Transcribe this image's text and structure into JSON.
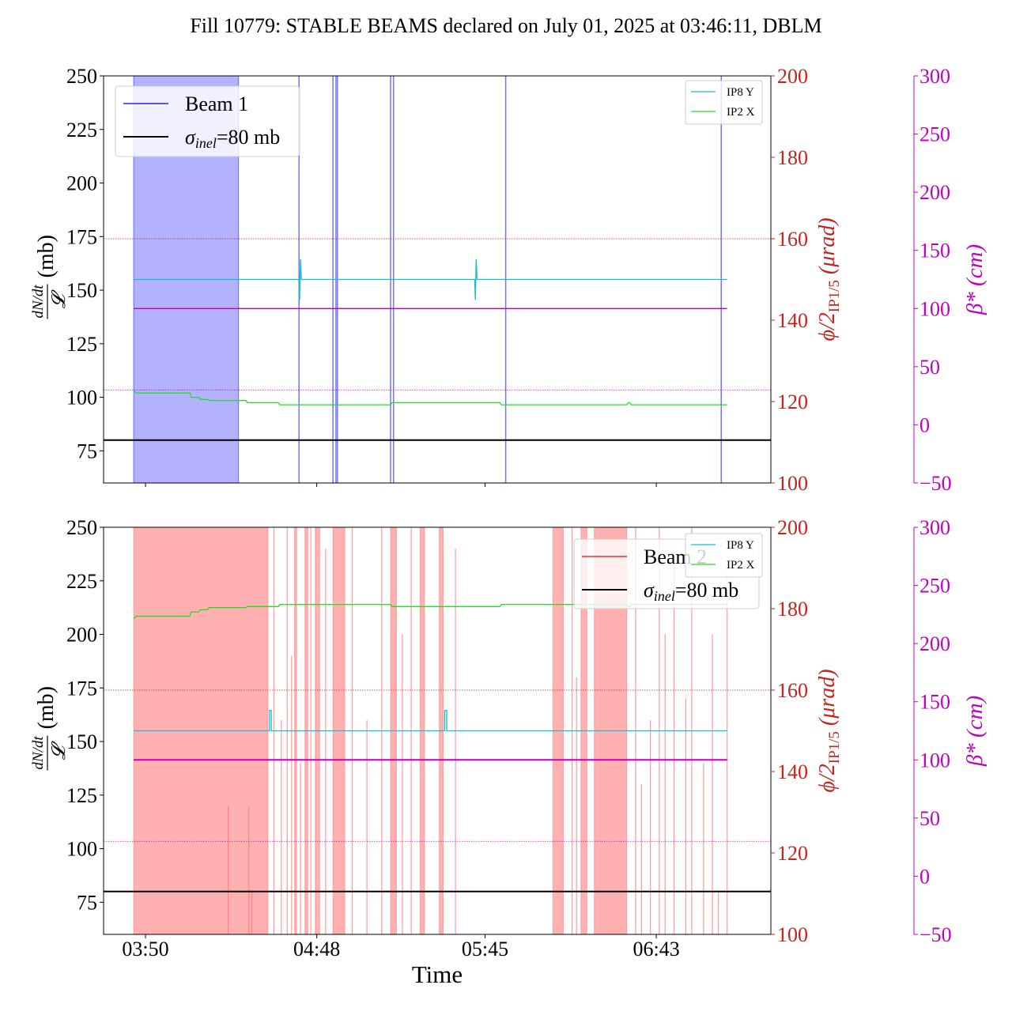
{
  "title": "Fill 10779: STABLE BEAMS declared on July 01, 2025 at 03:46:11, DBLM",
  "xlabel": "Time",
  "x_ticks": [
    {
      "t": 230,
      "label": "03:50"
    },
    {
      "t": 288,
      "label": "04:48"
    },
    {
      "t": 345,
      "label": "05:45"
    },
    {
      "t": 403,
      "label": "06:43"
    }
  ],
  "axis_labels": {
    "left_num": "dN/dt",
    "left_den": "𝓛",
    "left_unit": "(mb)",
    "right1": "ϕ/2",
    "right1_sub": "IP1/5",
    "right1_unit": "(μrad)",
    "right2": "β* (cm)"
  },
  "chart_data": [
    {
      "type": "line",
      "panel": "top",
      "xlim": [
        215.8,
        441.8
      ],
      "ylim": [
        60,
        250
      ],
      "ylim_right1": [
        100,
        200
      ],
      "ylim_right2": [
        -50,
        300
      ],
      "yticks": [
        75,
        100,
        125,
        150,
        175,
        200,
        225,
        250
      ],
      "yticks_right1": [
        100,
        120,
        140,
        160,
        180,
        200
      ],
      "yticks_right2": [
        -50,
        0,
        50,
        100,
        150,
        200,
        250,
        300
      ],
      "legend_main": [
        {
          "label": "Beam 1",
          "color": "#0000cc"
        },
        {
          "label": "σinel=80 mb",
          "math": true,
          "color": "#000000"
        }
      ],
      "legend_small": [
        {
          "label": "IP8 Y",
          "color": "#17becf"
        },
        {
          "label": "IP2 X",
          "color": "#22dd22"
        }
      ],
      "loss_color": "#0000ff",
      "loss_bands": [
        [
          226,
          261.5
        ]
      ],
      "loss_lines": [
        282,
        293.5,
        294.5,
        295,
        313,
        314,
        352,
        425
      ],
      "sigma_inel": 80,
      "crossing_angle_ref": 160,
      "beta_star_ref": 30,
      "series": [
        {
          "name": "IP8 Y",
          "axis": "right1",
          "color": "#17becf",
          "x": [
            226,
            282,
            282.2,
            282.5,
            282.8,
            341.5,
            341.7,
            342,
            342.3,
            427
          ],
          "y": [
            150,
            150,
            145,
            155,
            150,
            150,
            145,
            155,
            150,
            150
          ]
        },
        {
          "name": "beta*",
          "axis": "right2",
          "color": "#c000c0",
          "x": [
            226,
            427
          ],
          "y": [
            100,
            100
          ]
        },
        {
          "name": "IP2 X",
          "axis": "left",
          "color": "#22dd22",
          "x": [
            226,
            227,
            245,
            245.5,
            248,
            248.5,
            251,
            251.5,
            264,
            264.5,
            275,
            275.5,
            313,
            313.5,
            350,
            350.5,
            393,
            393.5,
            394,
            394.5,
            427
          ],
          "y": [
            103,
            102,
            102,
            100,
            100,
            99,
            99,
            98.5,
            98.5,
            97.5,
            97.5,
            96.5,
            96.5,
            97.5,
            97.5,
            96.5,
            96.5,
            97.5,
            97.5,
            96.5,
            96.5
          ]
        }
      ]
    },
    {
      "type": "line",
      "panel": "bottom",
      "xlim": [
        215.8,
        441.8
      ],
      "ylim": [
        60,
        250
      ],
      "ylim_right1": [
        100,
        200
      ],
      "ylim_right2": [
        -50,
        300
      ],
      "yticks": [
        75,
        100,
        125,
        150,
        175,
        200,
        225,
        250
      ],
      "yticks_right1": [
        100,
        120,
        140,
        160,
        180,
        200
      ],
      "yticks_right2": [
        -50,
        0,
        50,
        100,
        150,
        200,
        250,
        300
      ],
      "legend_main": [
        {
          "label": "Beam 2",
          "color": "#ff0000"
        },
        {
          "label": "σinel=80 mb",
          "math": true,
          "color": "#000000"
        }
      ],
      "legend_small": [
        {
          "label": "IP8 Y",
          "color": "#17becf"
        },
        {
          "label": "IP2 X",
          "color": "#22dd22"
        }
      ],
      "loss_color": "#ff7070",
      "loss_bands": [
        [
          226,
          271.5
        ],
        [
          280.5,
          281.2
        ],
        [
          284,
          285
        ],
        [
          287.5,
          289
        ],
        [
          293.5,
          297.5
        ],
        [
          313,
          315
        ],
        [
          323,
          324.5
        ],
        [
          329.5,
          330.8
        ],
        [
          368,
          371.5
        ],
        [
          377.5,
          379.5
        ],
        [
          382,
          393
        ]
      ],
      "loss_lines": [
        [
          258,
          60,
          120
        ],
        [
          265,
          60,
          120
        ],
        [
          266,
          60,
          80
        ],
        [
          273.5,
          60,
          250
        ],
        [
          276,
          60,
          160
        ],
        [
          278,
          60,
          250
        ],
        [
          279.5,
          60,
          190
        ],
        [
          282.5,
          60,
          140
        ],
        [
          286,
          60,
          250
        ],
        [
          291,
          60,
          240
        ],
        [
          300,
          60,
          250
        ],
        [
          305,
          60,
          160
        ],
        [
          310,
          60,
          250
        ],
        [
          317,
          60,
          200
        ],
        [
          320,
          60,
          250
        ],
        [
          335,
          60,
          240
        ],
        [
          374.5,
          60,
          250
        ],
        [
          376,
          60,
          180
        ],
        [
          396,
          60,
          250
        ],
        [
          398,
          60,
          130
        ],
        [
          401,
          60,
          160
        ],
        [
          404,
          60,
          250
        ],
        [
          406,
          60,
          200
        ],
        [
          409,
          60,
          240
        ],
        [
          413,
          60,
          170
        ],
        [
          415,
          60,
          250
        ],
        [
          419,
          60,
          140
        ],
        [
          422,
          60,
          200
        ],
        [
          424,
          60,
          80
        ],
        [
          427,
          60,
          230
        ]
      ],
      "sigma_inel": 80,
      "crossing_angle_ref": 160,
      "beta_star_ref": 30,
      "series": [
        {
          "name": "IP8 Y",
          "axis": "right1",
          "color": "#17becf",
          "x": [
            226,
            272,
            272,
            272.6,
            272.6,
            331.3,
            331.3,
            332,
            332,
            427
          ],
          "y": [
            150,
            150,
            155,
            155,
            150,
            150,
            155,
            155,
            150,
            150
          ]
        },
        {
          "name": "beta*",
          "axis": "right2",
          "color": "#c000c0",
          "x": [
            226,
            427
          ],
          "y": [
            100,
            100
          ]
        },
        {
          "name": "IP2 X",
          "axis": "left",
          "color": "#22dd22",
          "x": [
            226,
            227,
            245,
            245.5,
            248,
            248.5,
            251,
            251.5,
            264,
            264.5,
            275,
            275.5,
            313,
            313.5,
            350,
            350.5,
            393,
            393.5,
            394,
            394.5,
            427
          ],
          "y": [
            207.5,
            208.5,
            208.5,
            210.5,
            210.5,
            211.5,
            211.5,
            212.5,
            212.5,
            213,
            213,
            214,
            214,
            213,
            213,
            214,
            214,
            213,
            213,
            214,
            214
          ]
        }
      ]
    }
  ]
}
